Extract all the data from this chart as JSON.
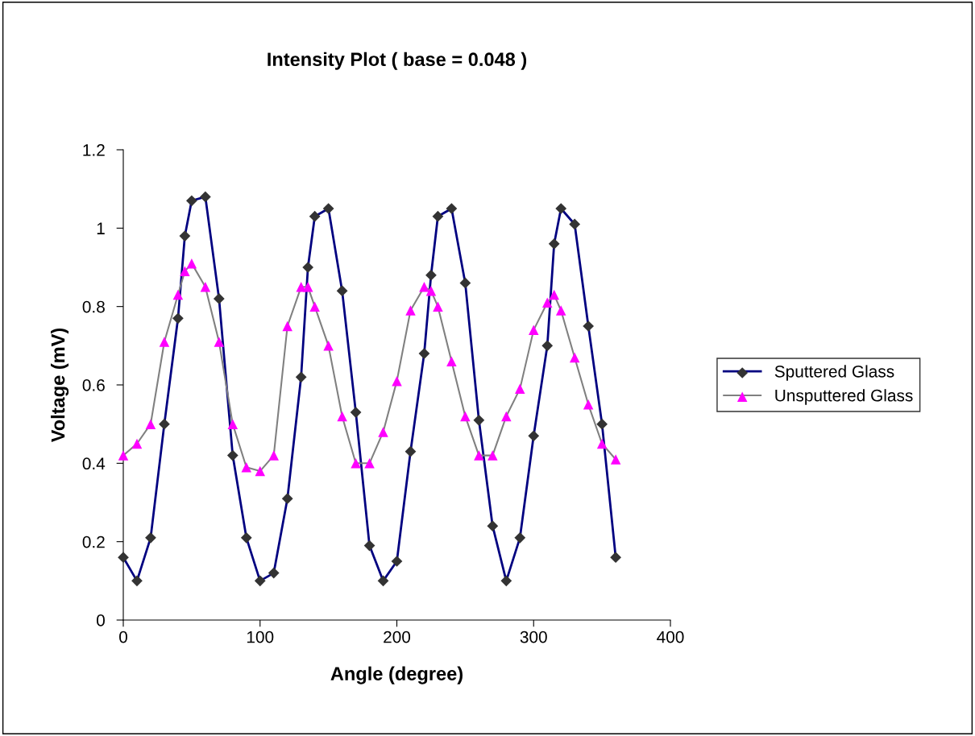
{
  "chart_data": {
    "type": "line",
    "title": "Intensity Plot ( base = 0.048 )",
    "xlabel": "Angle (degree)",
    "ylabel": "Voltage (mV)",
    "x": [
      0,
      10,
      20,
      30,
      40,
      45,
      50,
      60,
      70,
      80,
      90,
      100,
      110,
      120,
      130,
      135,
      140,
      150,
      160,
      170,
      180,
      190,
      200,
      210,
      220,
      225,
      230,
      240,
      250,
      260,
      270,
      280,
      290,
      300,
      310,
      315,
      320,
      330,
      340,
      350,
      360
    ],
    "series": [
      {
        "name": "Sputtered Glass",
        "color": "#000080",
        "marker": "diamond",
        "values": [
          0.16,
          0.1,
          0.21,
          0.5,
          0.77,
          0.98,
          1.07,
          1.08,
          0.82,
          0.42,
          0.21,
          0.1,
          0.12,
          0.31,
          0.62,
          0.9,
          1.03,
          1.05,
          0.84,
          0.53,
          0.19,
          0.1,
          0.15,
          0.43,
          0.68,
          0.88,
          1.03,
          1.05,
          0.86,
          0.51,
          0.24,
          0.1,
          0.21,
          0.47,
          0.7,
          0.96,
          1.05,
          1.01,
          0.75,
          0.5,
          0.16
        ]
      },
      {
        "name": "Unsputtered Glass",
        "color": "#808080",
        "marker": "triangle",
        "values": [
          0.42,
          0.45,
          0.5,
          0.71,
          0.83,
          0.89,
          0.91,
          0.85,
          0.71,
          0.5,
          0.39,
          0.38,
          0.42,
          0.75,
          0.85,
          0.85,
          0.8,
          0.7,
          0.52,
          0.4,
          0.4,
          0.48,
          0.61,
          0.79,
          0.85,
          0.84,
          0.8,
          0.66,
          0.52,
          0.42,
          0.42,
          0.52,
          0.59,
          0.74,
          0.81,
          0.83,
          0.79,
          0.67,
          0.55,
          0.45,
          0.41
        ]
      }
    ],
    "xlim": [
      0,
      400
    ],
    "xticks": [
      0,
      100,
      200,
      300,
      400
    ],
    "ylim": [
      0,
      1.2
    ],
    "yticks": [
      0,
      0.2,
      0.4,
      0.6,
      0.8,
      1,
      1.2
    ],
    "grid": false,
    "legend": "right",
    "line_style": "solid"
  }
}
